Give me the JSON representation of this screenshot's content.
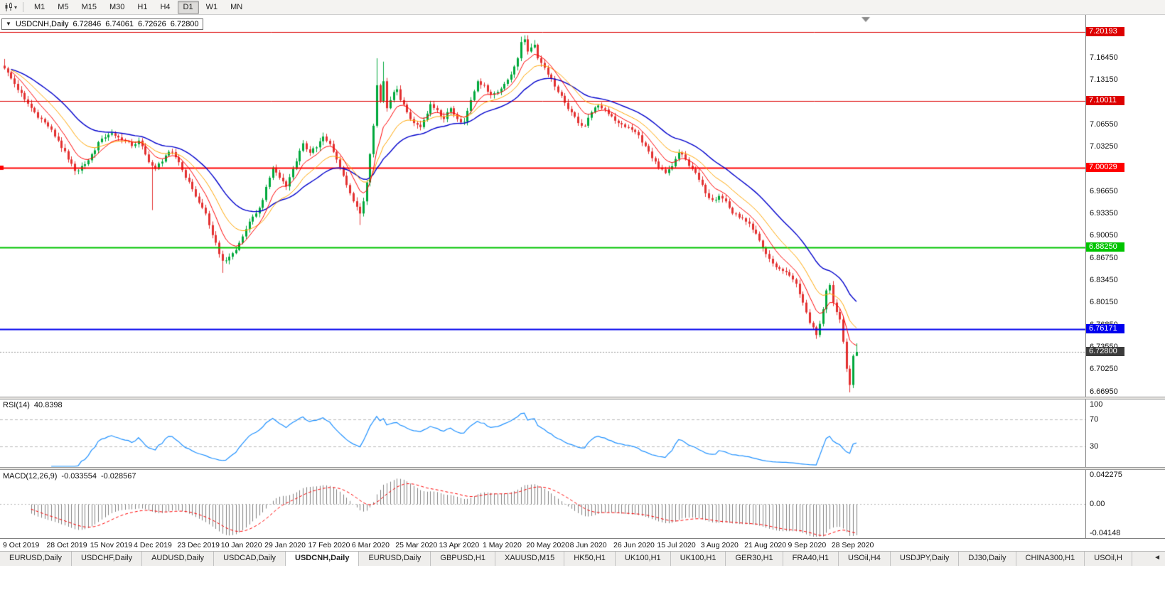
{
  "toolbar": {
    "chart_type_icon": "candlestick-chart-icon",
    "dropdown_glyph": "▾",
    "timeframes": [
      "M1",
      "M5",
      "M15",
      "M30",
      "H1",
      "H4",
      "D1",
      "W1",
      "MN"
    ],
    "active_timeframe": "D1"
  },
  "chart": {
    "collapse_glyph": "▼",
    "title": "USDCNH,Daily",
    "ohlc": {
      "open": "6.72846",
      "high": "6.74061",
      "low": "6.72626",
      "close": "6.72800"
    },
    "price_ticks": [
      "7.16450",
      "7.13150",
      "7.09850",
      "7.06550",
      "7.03250",
      "6.99950",
      "6.96650",
      "6.93350",
      "6.90050",
      "6.86750",
      "6.83450",
      "6.80150",
      "6.76850",
      "6.73550",
      "6.70250",
      "6.66950"
    ],
    "levels": [
      {
        "label": "7.20193",
        "value": 7.20193,
        "color": "#dd0000",
        "width": 1,
        "handle": false
      },
      {
        "label": "7.10011",
        "value": 7.10011,
        "color": "#dd0000",
        "width": 1,
        "handle": false
      },
      {
        "label": "7.00029",
        "value": 7.00029,
        "color": "#ff0000",
        "width": 2,
        "handle": true
      },
      {
        "label": "6.88250",
        "value": 6.8825,
        "color": "#00c400",
        "width": 2,
        "handle": false
      },
      {
        "label": "6.76171",
        "value": 6.76171,
        "color": "#0000ee",
        "width": 2,
        "handle": false
      }
    ],
    "bid": {
      "label": "6.72800",
      "value": 6.728,
      "color": "#3c3c3c"
    }
  },
  "rsi": {
    "name": "RSI(14)",
    "value": "40.8398",
    "line_color": "#1e90ff",
    "level_lines": [
      70,
      30
    ],
    "axis_labels": [
      {
        "text": "100",
        "value": 100
      },
      {
        "text": "70",
        "value": 70
      },
      {
        "text": "30",
        "value": 30
      }
    ]
  },
  "macd": {
    "name": "MACD(12,26,9)",
    "main_value": "-0.033554",
    "signal_value": "-0.028567",
    "histogram_color": "#808080",
    "signal_color": "#ff0000",
    "axis_labels": [
      {
        "text": "0.042275",
        "value": 0.042275
      },
      {
        "text": "0.00",
        "value": 0
      },
      {
        "text": "-0.04148",
        "value": -0.04148
      }
    ]
  },
  "date_axis": {
    "labels": [
      "9 Oct 2019",
      "28 Oct 2019",
      "15 Nov 2019",
      "4 Dec 2019",
      "23 Dec 2019",
      "10 Jan 2020",
      "29 Jan 2020",
      "17 Feb 2020",
      "6 Mar 2020",
      "25 Mar 2020",
      "13 Apr 2020",
      "1 May 2020",
      "20 May 2020",
      "8 Jun 2020",
      "26 Jun 2020",
      "15 Jul 2020",
      "3 Aug 2020",
      "21 Aug 2020",
      "9 Sep 2020",
      "28 Sep 2020"
    ]
  },
  "tabs": {
    "items": [
      "EURUSD,Daily",
      "USDCHF,Daily",
      "AUDUSD,Daily",
      "USDCAD,Daily",
      "USDCNH,Daily",
      "EURUSD,Daily",
      "GBPUSD,H1",
      "XAUUSD,M15",
      "HK50,H1",
      "UK100,H1",
      "UK100,H1",
      "GER30,H1",
      "FRA40,H1",
      "USOil,H4",
      "USDJPY,Daily",
      "DJ30,Daily",
      "CHINA300,H1",
      "USOil,H"
    ],
    "active_index": 4,
    "scroll_glyph": "◄"
  },
  "colors": {
    "up": "#00a83c",
    "down": "#e33030",
    "ma_fast": "#ff0000",
    "ma_mid": "#ffa500",
    "ma_slow": "#0000cc",
    "background": "#ffffff"
  },
  "chart_data": {
    "type": "candlestick",
    "symbol": "USDCNH",
    "timeframe": "Daily",
    "bars": 255,
    "bars_per_label": 13,
    "first_open": 7.152,
    "price_range_visible": [
      6.6626,
      7.2272
    ],
    "keypoints": [
      [
        0,
        7.148
      ],
      [
        3,
        7.125
      ],
      [
        6,
        7.102
      ],
      [
        9,
        7.083
      ],
      [
        13,
        7.062
      ],
      [
        16,
        7.041
      ],
      [
        19,
        7.013
      ],
      [
        21,
        6.996
      ],
      [
        24,
        7.006
      ],
      [
        26,
        7.021
      ],
      [
        29,
        7.044
      ],
      [
        32,
        7.052
      ],
      [
        35,
        7.042
      ],
      [
        38,
        7.033
      ],
      [
        40,
        7.041
      ],
      [
        43,
        7.009
      ],
      [
        45,
        6.999
      ],
      [
        48,
        7.019
      ],
      [
        50,
        7.024
      ],
      [
        52,
        7.009
      ],
      [
        54,
        6.986
      ],
      [
        56,
        6.969
      ],
      [
        58,
        6.949
      ],
      [
        60,
        6.933
      ],
      [
        62,
        6.901
      ],
      [
        64,
        6.873
      ],
      [
        65,
        6.863
      ],
      [
        67,
        6.869
      ],
      [
        69,
        6.879
      ],
      [
        71,
        6.899
      ],
      [
        73,
        6.921
      ],
      [
        75,
        6.933
      ],
      [
        77,
        6.953
      ],
      [
        79,
        6.986
      ],
      [
        80,
        7.001
      ],
      [
        82,
        6.986
      ],
      [
        84,
        6.973
      ],
      [
        86,
        6.999
      ],
      [
        88,
        7.026
      ],
      [
        89,
        7.037
      ],
      [
        91,
        7.023
      ],
      [
        93,
        7.031
      ],
      [
        95,
        7.047
      ],
      [
        97,
        7.036
      ],
      [
        99,
        7.013
      ],
      [
        101,
        6.989
      ],
      [
        103,
        6.963
      ],
      [
        105,
        6.943
      ],
      [
        106,
        6.933
      ],
      [
        107,
        6.951
      ],
      [
        108,
        6.979
      ],
      [
        109,
        7.021
      ],
      [
        110,
        7.063
      ],
      [
        111,
        7.123
      ],
      [
        112,
        7.099
      ],
      [
        113,
        7.129
      ],
      [
        114,
        7.089
      ],
      [
        115,
        7.101
      ],
      [
        116,
        7.113
      ],
      [
        117,
        7.117
      ],
      [
        118,
        7.101
      ],
      [
        120,
        7.083
      ],
      [
        122,
        7.067
      ],
      [
        124,
        7.061
      ],
      [
        126,
        7.081
      ],
      [
        127,
        7.095
      ],
      [
        129,
        7.086
      ],
      [
        131,
        7.073
      ],
      [
        133,
        7.089
      ],
      [
        135,
        7.073
      ],
      [
        137,
        7.069
      ],
      [
        139,
        7.101
      ],
      [
        141,
        7.129
      ],
      [
        143,
        7.123
      ],
      [
        145,
        7.109
      ],
      [
        147,
        7.113
      ],
      [
        149,
        7.125
      ],
      [
        151,
        7.139
      ],
      [
        153,
        7.163
      ],
      [
        154,
        7.187
      ],
      [
        155,
        7.191
      ],
      [
        156,
        7.173
      ],
      [
        157,
        7.179
      ],
      [
        158,
        7.183
      ],
      [
        159,
        7.163
      ],
      [
        161,
        7.149
      ],
      [
        163,
        7.133
      ],
      [
        165,
        7.113
      ],
      [
        167,
        7.097
      ],
      [
        169,
        7.083
      ],
      [
        171,
        7.067
      ],
      [
        173,
        7.063
      ],
      [
        175,
        7.083
      ],
      [
        177,
        7.093
      ],
      [
        179,
        7.087
      ],
      [
        181,
        7.077
      ],
      [
        183,
        7.067
      ],
      [
        185,
        7.061
      ],
      [
        187,
        7.057
      ],
      [
        189,
        7.049
      ],
      [
        191,
        7.033
      ],
      [
        193,
        7.015
      ],
      [
        195,
        7.001
      ],
      [
        197,
        6.993
      ],
      [
        199,
        7.003
      ],
      [
        201,
        7.023
      ],
      [
        203,
        7.013
      ],
      [
        205,
        6.999
      ],
      [
        207,
        6.983
      ],
      [
        209,
        6.963
      ],
      [
        211,
        6.953
      ],
      [
        213,
        6.959
      ],
      [
        215,
        6.951
      ],
      [
        217,
        6.933
      ],
      [
        219,
        6.927
      ],
      [
        221,
        6.921
      ],
      [
        223,
        6.909
      ],
      [
        225,
        6.893
      ],
      [
        227,
        6.873
      ],
      [
        229,
        6.859
      ],
      [
        231,
        6.851
      ],
      [
        233,
        6.846
      ],
      [
        234,
        6.841
      ],
      [
        236,
        6.829
      ],
      [
        238,
        6.801
      ],
      [
        240,
        6.771
      ],
      [
        242,
        6.753
      ],
      [
        244,
        6.791
      ],
      [
        245,
        6.819
      ],
      [
        246,
        6.827
      ],
      [
        247,
        6.801
      ],
      [
        248,
        6.787
      ],
      [
        249,
        6.776
      ],
      [
        250,
        6.743
      ],
      [
        251,
        6.703
      ],
      [
        252,
        6.679
      ],
      [
        253,
        6.722
      ],
      [
        254,
        6.728
      ]
    ],
    "extremes": [
      {
        "i": 0,
        "high": 7.162
      },
      {
        "i": 44,
        "low": 6.938
      },
      {
        "i": 65,
        "low": 6.845
      },
      {
        "i": 106,
        "low": 6.916
      },
      {
        "i": 111,
        "high": 7.163
      },
      {
        "i": 113,
        "high": 7.158
      },
      {
        "i": 154,
        "high": 7.195
      },
      {
        "i": 155,
        "high": 7.197
      },
      {
        "i": 158,
        "high": 7.19
      },
      {
        "i": 252,
        "low": 6.668
      },
      {
        "i": 254,
        "high": 6.7406,
        "low": 6.7263
      }
    ],
    "indicators": {
      "ma_periods": [
        8,
        16,
        30
      ],
      "rsi_period": 14,
      "macd_params": [
        12,
        26,
        9
      ]
    }
  }
}
